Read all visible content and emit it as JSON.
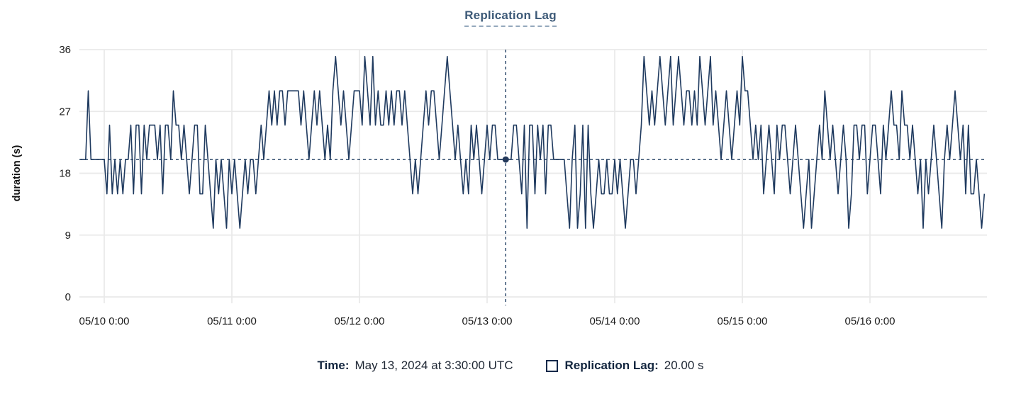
{
  "title": "Replication Lag",
  "tooltip": {
    "time_label": "Time:",
    "time_value": "May 13, 2024 at 3:30:00 UTC",
    "series_label": "Replication Lag:",
    "series_value": "20.00 s",
    "swatch_shape": "hollow-square"
  },
  "colors": {
    "line": "#1f3a5f",
    "grid": "#e9e9e9",
    "crosshair": "#2e4a6b",
    "dot": "#24395b",
    "title": "#3d5a78",
    "tick_text": "#1c1c1c",
    "axis_title_text": "#111111"
  },
  "chart_data": {
    "type": "line",
    "title": "Replication Lag",
    "xlabel": "",
    "ylabel": "duration (s)",
    "ylim": [
      0,
      36
    ],
    "yticks": [
      0,
      9,
      18,
      27,
      36
    ],
    "xticks": [
      "05/10 0:00",
      "05/11 0:00",
      "05/12 0:00",
      "05/13 0:00",
      "05/14 0:00",
      "05/15 0:00",
      "05/16 0:00"
    ],
    "grid": true,
    "legend_position": "bottom",
    "crosshair": {
      "time": "05/13 3:30",
      "value": 20
    },
    "series": [
      {
        "name": "Replication Lag",
        "unit": "s",
        "start": "05/09 19:30",
        "step_minutes": 30,
        "values": [
          20,
          20,
          20,
          30,
          20,
          20,
          20,
          20,
          20,
          20,
          15,
          25,
          15,
          20,
          15,
          20,
          15,
          20,
          20,
          25,
          15,
          25,
          25,
          15,
          25,
          20,
          25,
          25,
          25,
          20,
          25,
          15,
          25,
          25,
          20,
          30,
          25,
          25,
          20,
          25,
          20,
          15,
          20,
          25,
          25,
          15,
          15,
          25,
          20,
          15,
          10,
          20,
          15,
          20,
          15,
          10,
          20,
          15,
          20,
          15,
          10,
          15,
          20,
          15,
          20,
          20,
          15,
          20,
          25,
          20,
          25,
          30,
          25,
          30,
          25,
          30,
          30,
          25,
          30,
          30,
          30,
          30,
          30,
          25,
          30,
          25,
          20,
          25,
          30,
          25,
          30,
          25,
          20,
          25,
          20,
          30,
          35,
          30,
          25,
          30,
          25,
          20,
          25,
          30,
          30,
          30,
          25,
          35,
          30,
          25,
          35,
          25,
          30,
          25,
          25,
          30,
          25,
          30,
          25,
          30,
          30,
          25,
          30,
          25,
          20,
          15,
          20,
          15,
          20,
          25,
          30,
          25,
          30,
          30,
          25,
          20,
          25,
          30,
          35,
          30,
          25,
          20,
          25,
          20,
          15,
          20,
          15,
          25,
          20,
          25,
          20,
          15,
          20,
          25,
          20,
          25,
          25,
          20,
          20,
          20,
          20,
          20,
          20,
          25,
          25,
          20,
          15,
          25,
          10,
          25,
          25,
          15,
          25,
          20,
          25,
          15,
          25,
          25,
          20,
          20,
          20,
          20,
          20,
          15,
          10,
          20,
          25,
          10,
          15,
          25,
          10,
          25,
          15,
          10,
          15,
          20,
          15,
          15,
          20,
          15,
          15,
          20,
          15,
          20,
          15,
          10,
          15,
          20,
          20,
          15,
          20,
          25,
          35,
          30,
          25,
          30,
          25,
          30,
          35,
          30,
          25,
          30,
          35,
          25,
          30,
          35,
          30,
          25,
          30,
          30,
          25,
          30,
          25,
          35,
          30,
          25,
          30,
          35,
          25,
          30,
          25,
          20,
          25,
          30,
          25,
          20,
          25,
          30,
          25,
          35,
          30,
          30,
          25,
          20,
          25,
          20,
          25,
          15,
          20,
          25,
          20,
          15,
          25,
          20,
          25,
          25,
          20,
          15,
          20,
          25,
          20,
          15,
          10,
          15,
          20,
          10,
          15,
          20,
          25,
          20,
          30,
          25,
          20,
          25,
          20,
          15,
          20,
          25,
          20,
          10,
          15,
          25,
          25,
          20,
          25,
          25,
          15,
          20,
          25,
          25,
          20,
          15,
          25,
          20,
          25,
          30,
          25,
          25,
          20,
          30,
          25,
          25,
          20,
          25,
          20,
          15,
          20,
          10,
          20,
          15,
          20,
          25,
          20,
          15,
          10,
          20,
          25,
          20,
          25,
          30,
          25,
          20,
          25,
          15,
          25,
          15,
          15,
          20,
          15,
          10,
          15
        ]
      }
    ]
  }
}
